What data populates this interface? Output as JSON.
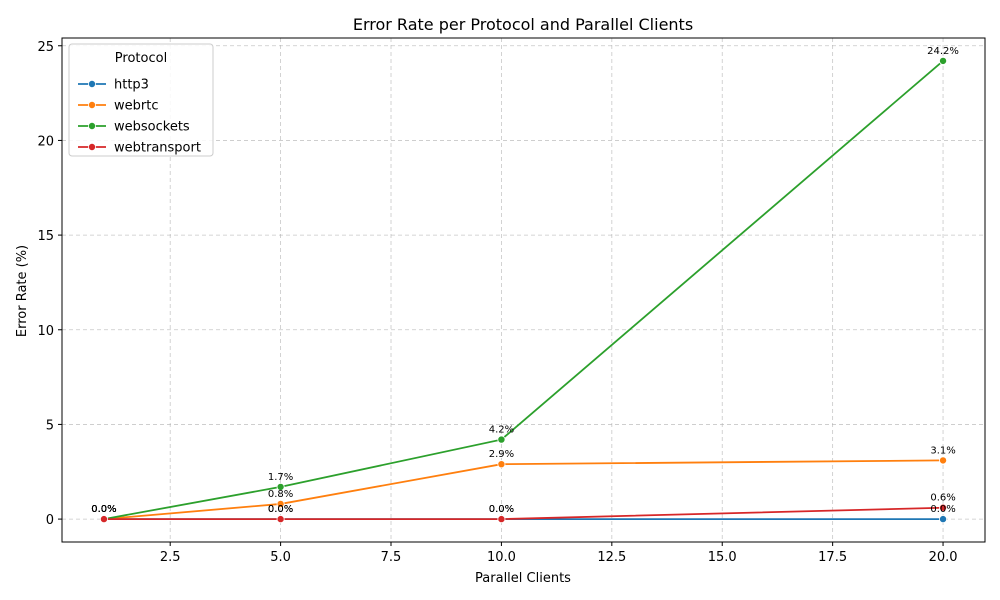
{
  "chart_data": {
    "type": "line",
    "title": "Error Rate per Protocol and Parallel Clients",
    "xlabel": "Parallel Clients",
    "ylabel": "Error Rate (%)",
    "xlim": [
      0.05,
      20.95
    ],
    "ylim": [
      -1.21,
      25.41
    ],
    "xticks": [
      2.5,
      5.0,
      7.5,
      10.0,
      12.5,
      15.0,
      17.5,
      20.0
    ],
    "xtick_labels": [
      "2.5",
      "5.0",
      "7.5",
      "10.0",
      "12.5",
      "15.0",
      "17.5",
      "20.0"
    ],
    "yticks": [
      0,
      5,
      10,
      15,
      20,
      25
    ],
    "ytick_labels": [
      "0",
      "5",
      "10",
      "15",
      "20",
      "25"
    ],
    "grid": true,
    "legend": {
      "title": "Protocol",
      "placement": "top-left"
    },
    "x": [
      1,
      5,
      10,
      20
    ],
    "series": [
      {
        "name": "http3",
        "color": "#1f77b4",
        "values": [
          0.0,
          0.0,
          0.0,
          0.0
        ],
        "labels": [
          "0.0%",
          "0.0%",
          "0.0%",
          "0.0%"
        ]
      },
      {
        "name": "webrtc",
        "color": "#ff7f0e",
        "values": [
          0.0,
          0.8,
          2.9,
          3.1
        ],
        "labels": [
          "0.0%",
          "0.8%",
          "2.9%",
          "3.1%"
        ]
      },
      {
        "name": "websockets",
        "color": "#2ca02c",
        "values": [
          0.0,
          1.7,
          4.2,
          24.2
        ],
        "labels": [
          "0.0%",
          "1.7%",
          "4.2%",
          "24.2%"
        ]
      },
      {
        "name": "webtransport",
        "color": "#d62728",
        "values": [
          0.0,
          0.0,
          0.0,
          0.6
        ],
        "labels": [
          "0.0%",
          "0.0%",
          "0.0%",
          "0.6%"
        ]
      }
    ]
  }
}
